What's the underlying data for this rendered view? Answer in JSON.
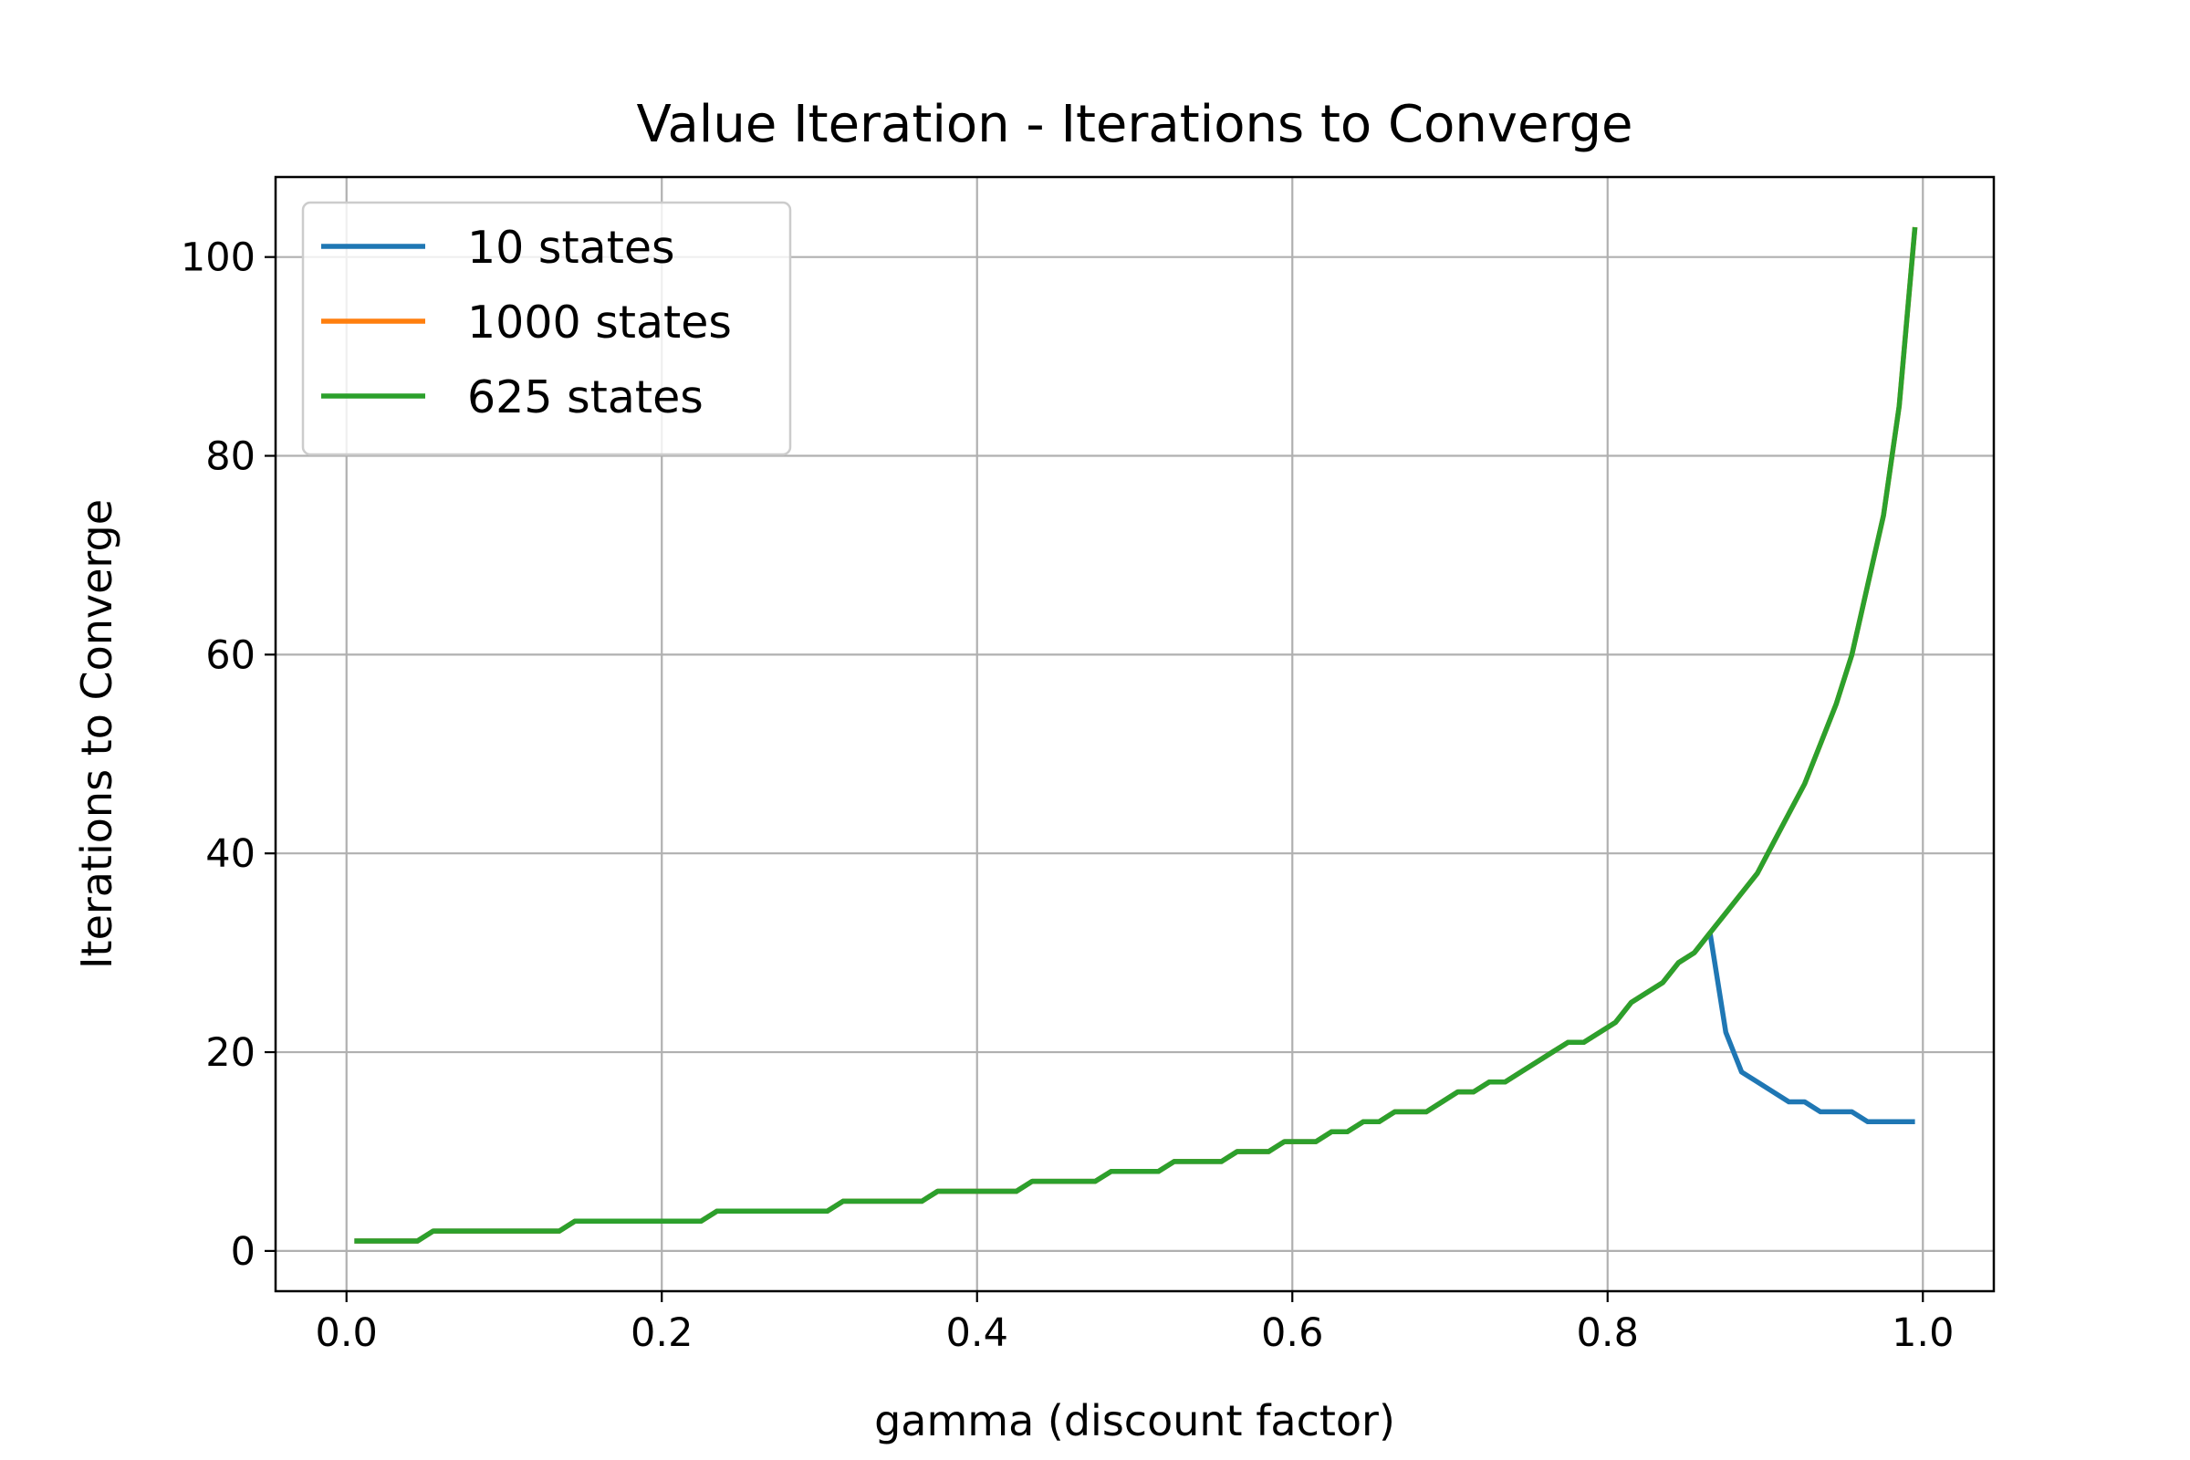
{
  "chart_data": {
    "type": "line",
    "title": "Value Iteration - Iterations to Converge",
    "xlabel": "gamma (discount factor)",
    "ylabel": "Iterations to Converge",
    "xlim": [
      -0.045,
      1.045
    ],
    "ylim": [
      -4.05,
      108.05
    ],
    "xticks": [
      0.0,
      0.2,
      0.4,
      0.6,
      0.8,
      1.0
    ],
    "xtick_labels": [
      "0.0",
      "0.2",
      "0.4",
      "0.6",
      "0.8",
      "1.0"
    ],
    "yticks": [
      0,
      20,
      40,
      60,
      80,
      100
    ],
    "ytick_labels": [
      "0",
      "20",
      "40",
      "60",
      "80",
      "100"
    ],
    "grid": true,
    "legend_position": "upper-left",
    "x": [
      0.005,
      0.015,
      0.025,
      0.035,
      0.045,
      0.055,
      0.065,
      0.075,
      0.085,
      0.095,
      0.105,
      0.115,
      0.125,
      0.135,
      0.145,
      0.155,
      0.165,
      0.175,
      0.185,
      0.195,
      0.205,
      0.215,
      0.225,
      0.235,
      0.245,
      0.255,
      0.265,
      0.275,
      0.285,
      0.295,
      0.305,
      0.315,
      0.325,
      0.335,
      0.345,
      0.355,
      0.365,
      0.375,
      0.385,
      0.395,
      0.405,
      0.415,
      0.425,
      0.435,
      0.445,
      0.455,
      0.465,
      0.475,
      0.485,
      0.495,
      0.505,
      0.515,
      0.525,
      0.535,
      0.545,
      0.555,
      0.565,
      0.575,
      0.585,
      0.595,
      0.605,
      0.615,
      0.625,
      0.635,
      0.645,
      0.655,
      0.665,
      0.675,
      0.685,
      0.695,
      0.705,
      0.715,
      0.725,
      0.735,
      0.745,
      0.755,
      0.765,
      0.775,
      0.785,
      0.795,
      0.805,
      0.815,
      0.825,
      0.835,
      0.845,
      0.855,
      0.865,
      0.875,
      0.885,
      0.895,
      0.905,
      0.915,
      0.925,
      0.935,
      0.945,
      0.955,
      0.965,
      0.975,
      0.985,
      0.995
    ],
    "series": [
      {
        "name": "10 states",
        "color": "#1f77b4",
        "values": [
          1,
          1,
          1,
          1,
          1,
          2,
          2,
          2,
          2,
          2,
          2,
          2,
          2,
          2,
          3,
          3,
          3,
          3,
          3,
          3,
          3,
          3,
          3,
          4,
          4,
          4,
          4,
          4,
          4,
          4,
          4,
          5,
          5,
          5,
          5,
          5,
          5,
          6,
          6,
          6,
          6,
          6,
          6,
          7,
          7,
          7,
          7,
          7,
          8,
          8,
          8,
          8,
          9,
          9,
          9,
          9,
          10,
          10,
          10,
          11,
          11,
          11,
          12,
          12,
          13,
          13,
          14,
          14,
          14,
          15,
          16,
          16,
          17,
          17,
          18,
          19,
          20,
          21,
          21,
          22,
          23,
          25,
          26,
          27,
          29,
          30,
          32,
          22,
          18,
          17,
          16,
          15,
          15,
          14,
          14,
          14,
          13,
          13,
          13,
          13
        ]
      },
      {
        "name": "1000 states",
        "color": "#ff7f0e",
        "values": [
          1,
          1,
          1,
          1,
          1,
          2,
          2,
          2,
          2,
          2,
          2,
          2,
          2,
          2,
          3,
          3,
          3,
          3,
          3,
          3,
          3,
          3,
          3,
          4,
          4,
          4,
          4,
          4,
          4,
          4,
          4,
          5,
          5,
          5,
          5,
          5,
          5,
          6,
          6,
          6,
          6,
          6,
          6,
          7,
          7,
          7,
          7,
          7,
          8,
          8,
          8,
          8,
          9,
          9,
          9,
          9,
          10,
          10,
          10,
          11,
          11,
          11,
          12,
          12,
          13,
          13,
          14,
          14,
          14,
          15,
          16,
          16,
          17,
          17,
          18,
          19,
          20,
          21,
          21,
          22,
          23,
          25,
          26,
          27,
          29,
          30,
          32,
          34,
          36,
          38,
          41,
          44,
          47,
          51,
          55,
          60,
          67,
          74,
          85,
          103
        ]
      },
      {
        "name": "625 states",
        "color": "#2ca02c",
        "values": [
          1,
          1,
          1,
          1,
          1,
          2,
          2,
          2,
          2,
          2,
          2,
          2,
          2,
          2,
          3,
          3,
          3,
          3,
          3,
          3,
          3,
          3,
          3,
          4,
          4,
          4,
          4,
          4,
          4,
          4,
          4,
          5,
          5,
          5,
          5,
          5,
          5,
          6,
          6,
          6,
          6,
          6,
          6,
          7,
          7,
          7,
          7,
          7,
          8,
          8,
          8,
          8,
          9,
          9,
          9,
          9,
          10,
          10,
          10,
          11,
          11,
          11,
          12,
          12,
          13,
          13,
          14,
          14,
          14,
          15,
          16,
          16,
          17,
          17,
          18,
          19,
          20,
          21,
          21,
          22,
          23,
          25,
          26,
          27,
          29,
          30,
          32,
          34,
          36,
          38,
          41,
          44,
          47,
          51,
          55,
          60,
          67,
          74,
          85,
          103
        ]
      }
    ]
  }
}
